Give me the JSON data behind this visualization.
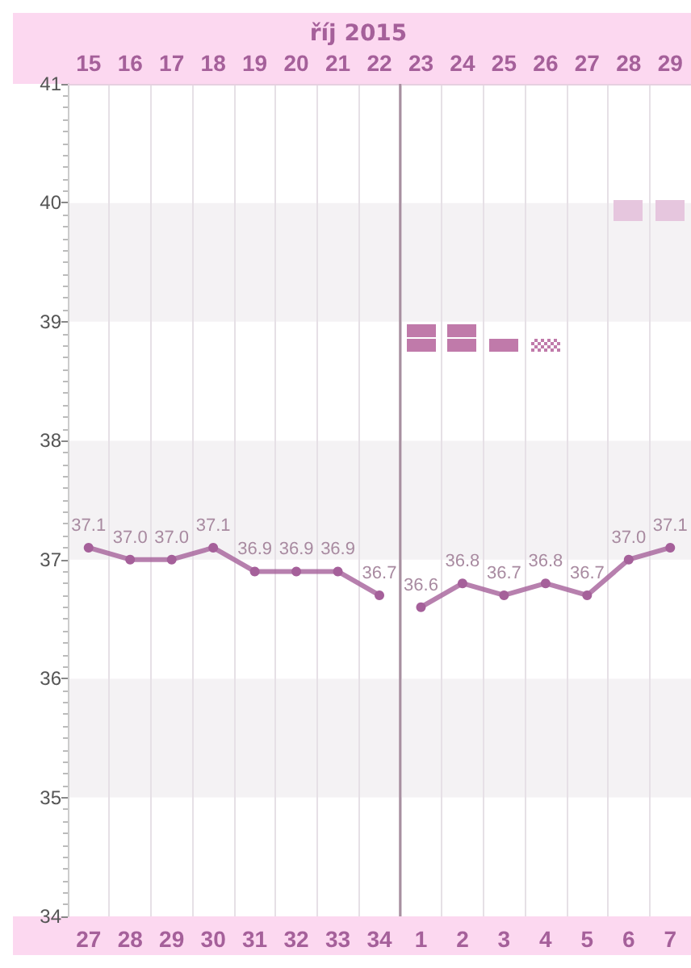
{
  "chart_data": {
    "type": "line",
    "title": "říj 2015",
    "categories": [
      "27",
      "28",
      "29",
      "30",
      "31",
      "32",
      "33",
      "34",
      "1",
      "2",
      "3",
      "4",
      "5",
      "6",
      "7"
    ],
    "series": [
      {
        "color": "#a5609a",
        "values": [
          37.1,
          37.0,
          37.0,
          37.1,
          36.9,
          36.9,
          36.9,
          36.7,
          null,
          null,
          null,
          null,
          null,
          null,
          null
        ],
        "value_labels": [
          "37.1",
          "37.0",
          "37.0",
          "37.1",
          "36.9",
          "36.9",
          "36.9",
          "36.7",
          null,
          null,
          null,
          null,
          null,
          null,
          null
        ]
      },
      {
        "color": "#a5609a",
        "values": [
          null,
          null,
          null,
          null,
          null,
          null,
          null,
          null,
          36.6,
          36.8,
          36.7,
          36.8,
          36.7,
          37.0,
          37.1
        ],
        "value_labels": [
          null,
          null,
          null,
          null,
          null,
          null,
          null,
          null,
          "36.6",
          "36.8",
          "36.7",
          "36.8",
          "36.7",
          "37.0",
          "37.1"
        ]
      }
    ],
    "x2lim": [
      14.5,
      29.5
    ],
    "x2ticks": [
      15,
      16,
      17,
      18,
      19,
      20,
      21,
      22,
      23,
      24,
      25,
      26,
      27,
      28,
      29
    ],
    "ylim": [
      34,
      41
    ],
    "yticks": [
      34,
      35,
      36,
      37,
      38,
      39,
      40,
      41
    ],
    "ref_lines": [
      {
        "axis": "x",
        "value": "1",
        "color": "#a890a0"
      }
    ],
    "grid": "x",
    "marker": "circle",
    "line_style": "solid"
  }
}
